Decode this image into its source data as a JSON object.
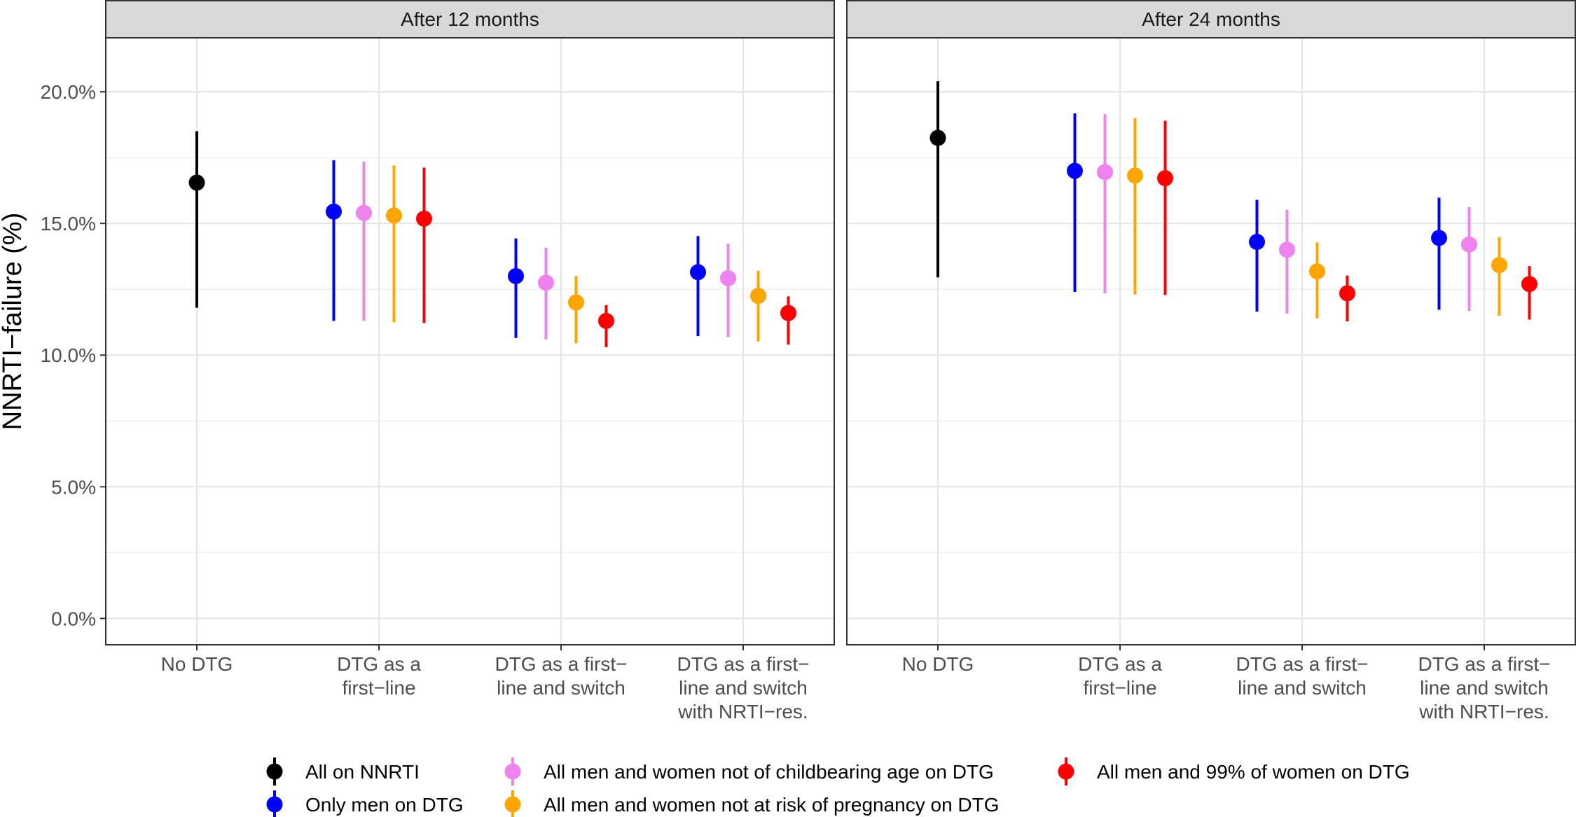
{
  "chart_data": {
    "type": "scatter",
    "subtype": "point-range",
    "ylabel": "NNRTI−failure (%)",
    "xlabel": "",
    "ylim": [
      -0.01,
      0.2205
    ],
    "yticks": [
      0.0,
      0.05,
      0.1,
      0.15,
      0.2
    ],
    "ytick_labels": [
      "0.0%",
      "5.0%",
      "10.0%",
      "15.0%",
      "20.0%"
    ],
    "grid": true,
    "legend_position": "bottom",
    "categories": [
      [
        "No DTG"
      ],
      [
        "DTG as a",
        "first−line"
      ],
      [
        "DTG as a first−",
        "line and switch"
      ],
      [
        "DTG as a first−",
        "line and switch",
        "with NRTI−res."
      ]
    ],
    "series": [
      {
        "name": "All on NNRTI",
        "color": "#000000"
      },
      {
        "name": "Only men on DTG",
        "color": "#0000ff"
      },
      {
        "name": "All men and women not of childbearing age on DTG",
        "color": "#ee82ee"
      },
      {
        "name": "All men and women not at risk of pregnancy on DTG",
        "color": "#ffa500"
      },
      {
        "name": "All men and 99% of women on DTG",
        "color": "#ff0000"
      }
    ],
    "legend_order": [
      0,
      1,
      2,
      3,
      4
    ],
    "panels": [
      {
        "title": "After 12 months",
        "points": [
          {
            "category": 0,
            "series": 0,
            "y": 0.1655,
            "low": 0.118,
            "high": 0.185
          },
          {
            "category": 1,
            "series": 1,
            "y": 0.1545,
            "low": 0.113,
            "high": 0.174
          },
          {
            "category": 1,
            "series": 2,
            "y": 0.154,
            "low": 0.113,
            "high": 0.1735
          },
          {
            "category": 1,
            "series": 3,
            "y": 0.153,
            "low": 0.1125,
            "high": 0.172
          },
          {
            "category": 1,
            "series": 4,
            "y": 0.1518,
            "low": 0.1122,
            "high": 0.1712
          },
          {
            "category": 2,
            "series": 1,
            "y": 0.13,
            "low": 0.1065,
            "high": 0.1443
          },
          {
            "category": 2,
            "series": 2,
            "y": 0.1275,
            "low": 0.106,
            "high": 0.1408
          },
          {
            "category": 2,
            "series": 3,
            "y": 0.12,
            "low": 0.1045,
            "high": 0.13
          },
          {
            "category": 2,
            "series": 4,
            "y": 0.113,
            "low": 0.103,
            "high": 0.119
          },
          {
            "category": 3,
            "series": 1,
            "y": 0.1315,
            "low": 0.1072,
            "high": 0.1452
          },
          {
            "category": 3,
            "series": 2,
            "y": 0.1292,
            "low": 0.1068,
            "high": 0.1423
          },
          {
            "category": 3,
            "series": 3,
            "y": 0.1225,
            "low": 0.1052,
            "high": 0.132
          },
          {
            "category": 3,
            "series": 4,
            "y": 0.116,
            "low": 0.104,
            "high": 0.1223
          }
        ]
      },
      {
        "title": "After 24 months",
        "points": [
          {
            "category": 0,
            "series": 0,
            "y": 0.1825,
            "low": 0.1295,
            "high": 0.204
          },
          {
            "category": 1,
            "series": 1,
            "y": 0.17,
            "low": 0.124,
            "high": 0.1918
          },
          {
            "category": 1,
            "series": 2,
            "y": 0.1695,
            "low": 0.1235,
            "high": 0.1915
          },
          {
            "category": 1,
            "series": 3,
            "y": 0.1682,
            "low": 0.123,
            "high": 0.19
          },
          {
            "category": 1,
            "series": 4,
            "y": 0.1672,
            "low": 0.1228,
            "high": 0.189
          },
          {
            "category": 2,
            "series": 1,
            "y": 0.143,
            "low": 0.1165,
            "high": 0.159
          },
          {
            "category": 2,
            "series": 2,
            "y": 0.14,
            "low": 0.1158,
            "high": 0.1552
          },
          {
            "category": 2,
            "series": 3,
            "y": 0.1318,
            "low": 0.114,
            "high": 0.1428
          },
          {
            "category": 2,
            "series": 4,
            "y": 0.1235,
            "low": 0.1128,
            "high": 0.1302
          },
          {
            "category": 3,
            "series": 1,
            "y": 0.1445,
            "low": 0.1172,
            "high": 0.1598
          },
          {
            "category": 3,
            "series": 2,
            "y": 0.142,
            "low": 0.1168,
            "high": 0.1562
          },
          {
            "category": 3,
            "series": 3,
            "y": 0.1342,
            "low": 0.115,
            "high": 0.1448
          },
          {
            "category": 3,
            "series": 4,
            "y": 0.127,
            "low": 0.1135,
            "high": 0.1338
          }
        ]
      }
    ]
  }
}
